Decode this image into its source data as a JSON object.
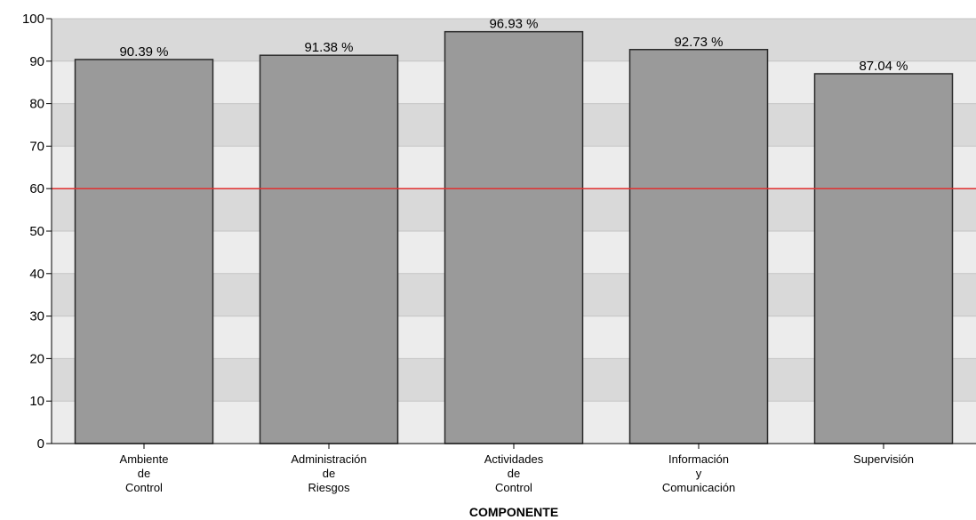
{
  "chart_data": {
    "type": "bar",
    "categories": [
      [
        "Ambiente",
        "de",
        "Control"
      ],
      [
        "Administración",
        "de",
        "Riesgos"
      ],
      [
        "Actividades",
        "de",
        "Control"
      ],
      [
        "Información",
        "y",
        "Comunicación"
      ],
      [
        "Supervisión"
      ]
    ],
    "values": [
      90.39,
      91.38,
      96.93,
      92.73,
      87.04
    ],
    "data_labels": [
      "90.39 %",
      "91.38 %",
      "96.93 %",
      "92.73 %",
      "87.04 %"
    ],
    "title": "",
    "xlabel": "COMPONENTE",
    "ylabel": "",
    "ylim": [
      0,
      100
    ],
    "yticks": [
      0,
      10,
      20,
      30,
      40,
      50,
      60,
      70,
      80,
      90,
      100
    ],
    "reference_line": 60,
    "grid": true,
    "colors": {
      "bar_fill": "#9a9a9a",
      "bar_stroke": "#2a2a2a",
      "band_light": "#ececec",
      "band_dark": "#d9d9d9",
      "reference_line": "#e03030",
      "axis": "#000000"
    }
  }
}
